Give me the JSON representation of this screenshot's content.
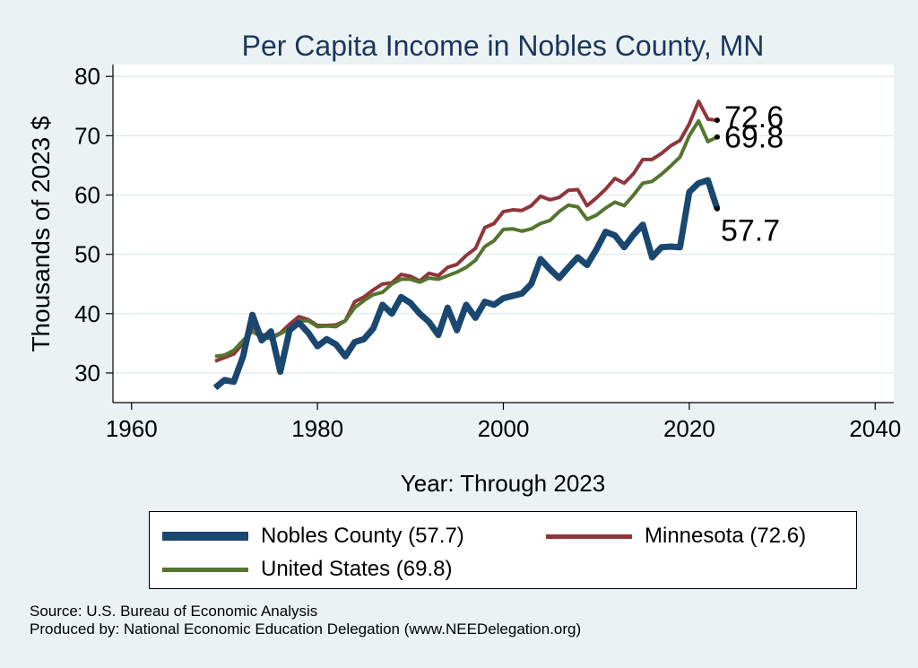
{
  "colors": {
    "background": "#eaf2f3",
    "plot_background": "#ffffff",
    "title": "#1b365d",
    "nobles": "#1a476f",
    "minnesota": "#90353b",
    "united_states": "#55752f",
    "grid": "#e3ecef"
  },
  "legend": {
    "items": [
      {
        "label": "Nobles County (57.7)",
        "series": "nobles"
      },
      {
        "label": "Minnesota (72.6)",
        "series": "minnesota"
      },
      {
        "label": "United States (69.8)",
        "series": "united_states"
      }
    ]
  },
  "source": {
    "line1": "Source: U.S. Bureau of Economic Analysis",
    "line2": "Produced by: National Economic Education Delegation (www.NEEDelegation.org)"
  },
  "chart_data": {
    "type": "line",
    "title": "Per Capita Income in Nobles County, MN",
    "xlabel": "Year: Through 2023",
    "ylabel": "Thousands of 2023 $",
    "xlim": [
      1958,
      2042
    ],
    "ylim": [
      25,
      82
    ],
    "xticks": [
      1960,
      1980,
      2000,
      2020,
      2040
    ],
    "yticks": [
      30,
      40,
      50,
      60,
      70,
      80
    ],
    "grid": true,
    "x": [
      1969,
      1970,
      1971,
      1972,
      1973,
      1974,
      1975,
      1976,
      1977,
      1978,
      1979,
      1980,
      1981,
      1982,
      1983,
      1984,
      1985,
      1986,
      1987,
      1988,
      1989,
      1990,
      1991,
      1992,
      1993,
      1994,
      1995,
      1996,
      1997,
      1998,
      1999,
      2000,
      2001,
      2002,
      2003,
      2004,
      2005,
      2006,
      2007,
      2008,
      2009,
      2010,
      2011,
      2012,
      2013,
      2014,
      2015,
      2016,
      2017,
      2018,
      2019,
      2020,
      2021,
      2022,
      2023
    ],
    "series": [
      {
        "name": "Nobles County",
        "key": "nobles",
        "end_label": "57.7",
        "values": [
          27.5,
          28.8,
          28.5,
          32.8,
          39.8,
          35.5,
          37.0,
          30.2,
          37.2,
          38.5,
          36.8,
          34.5,
          35.7,
          34.8,
          32.8,
          35.2,
          35.7,
          37.5,
          41.5,
          40.0,
          42.8,
          41.8,
          40.0,
          38.6,
          36.4,
          41.0,
          37.2,
          41.5,
          39.3,
          42.0,
          41.5,
          42.6,
          43.0,
          43.4,
          45.0,
          49.2,
          47.5,
          46.0,
          47.8,
          49.5,
          48.2,
          50.8,
          53.8,
          53.2,
          51.2,
          53.3,
          55.0,
          49.5,
          51.2,
          51.3,
          51.2,
          60.5,
          62.0,
          62.5,
          57.7
        ]
      },
      {
        "name": "Minnesota",
        "key": "minnesota",
        "end_label": "72.6",
        "values": [
          32.0,
          32.6,
          33.2,
          35.0,
          37.8,
          36.5,
          36.0,
          36.7,
          38.2,
          39.5,
          39.0,
          38.0,
          38.0,
          38.1,
          38.8,
          42.0,
          42.8,
          44.0,
          45.0,
          45.2,
          46.6,
          46.3,
          45.5,
          46.8,
          46.4,
          47.8,
          48.3,
          49.8,
          51.0,
          54.5,
          55.2,
          57.2,
          57.5,
          57.4,
          58.2,
          59.8,
          59.2,
          59.6,
          60.8,
          60.9,
          58.2,
          59.5,
          61.0,
          62.8,
          62.0,
          63.6,
          66.0,
          66.0,
          67.0,
          68.3,
          69.2,
          72.0,
          75.8,
          72.8,
          72.6
        ]
      },
      {
        "name": "United States",
        "key": "united_states",
        "end_label": "69.8",
        "values": [
          32.8,
          33.0,
          33.8,
          35.5,
          37.0,
          36.0,
          35.8,
          36.6,
          37.5,
          38.8,
          38.8,
          37.8,
          37.9,
          37.8,
          38.8,
          41.0,
          42.2,
          43.2,
          43.6,
          45.0,
          45.8,
          45.8,
          45.3,
          46.0,
          45.8,
          46.4,
          47.0,
          47.8,
          49.0,
          51.3,
          52.3,
          54.2,
          54.3,
          53.9,
          54.3,
          55.2,
          55.7,
          57.2,
          58.3,
          58.0,
          55.9,
          56.6,
          57.8,
          58.8,
          58.2,
          60.0,
          62.0,
          62.3,
          63.5,
          64.9,
          66.4,
          70.0,
          72.5,
          69.0,
          69.8
        ]
      }
    ]
  }
}
